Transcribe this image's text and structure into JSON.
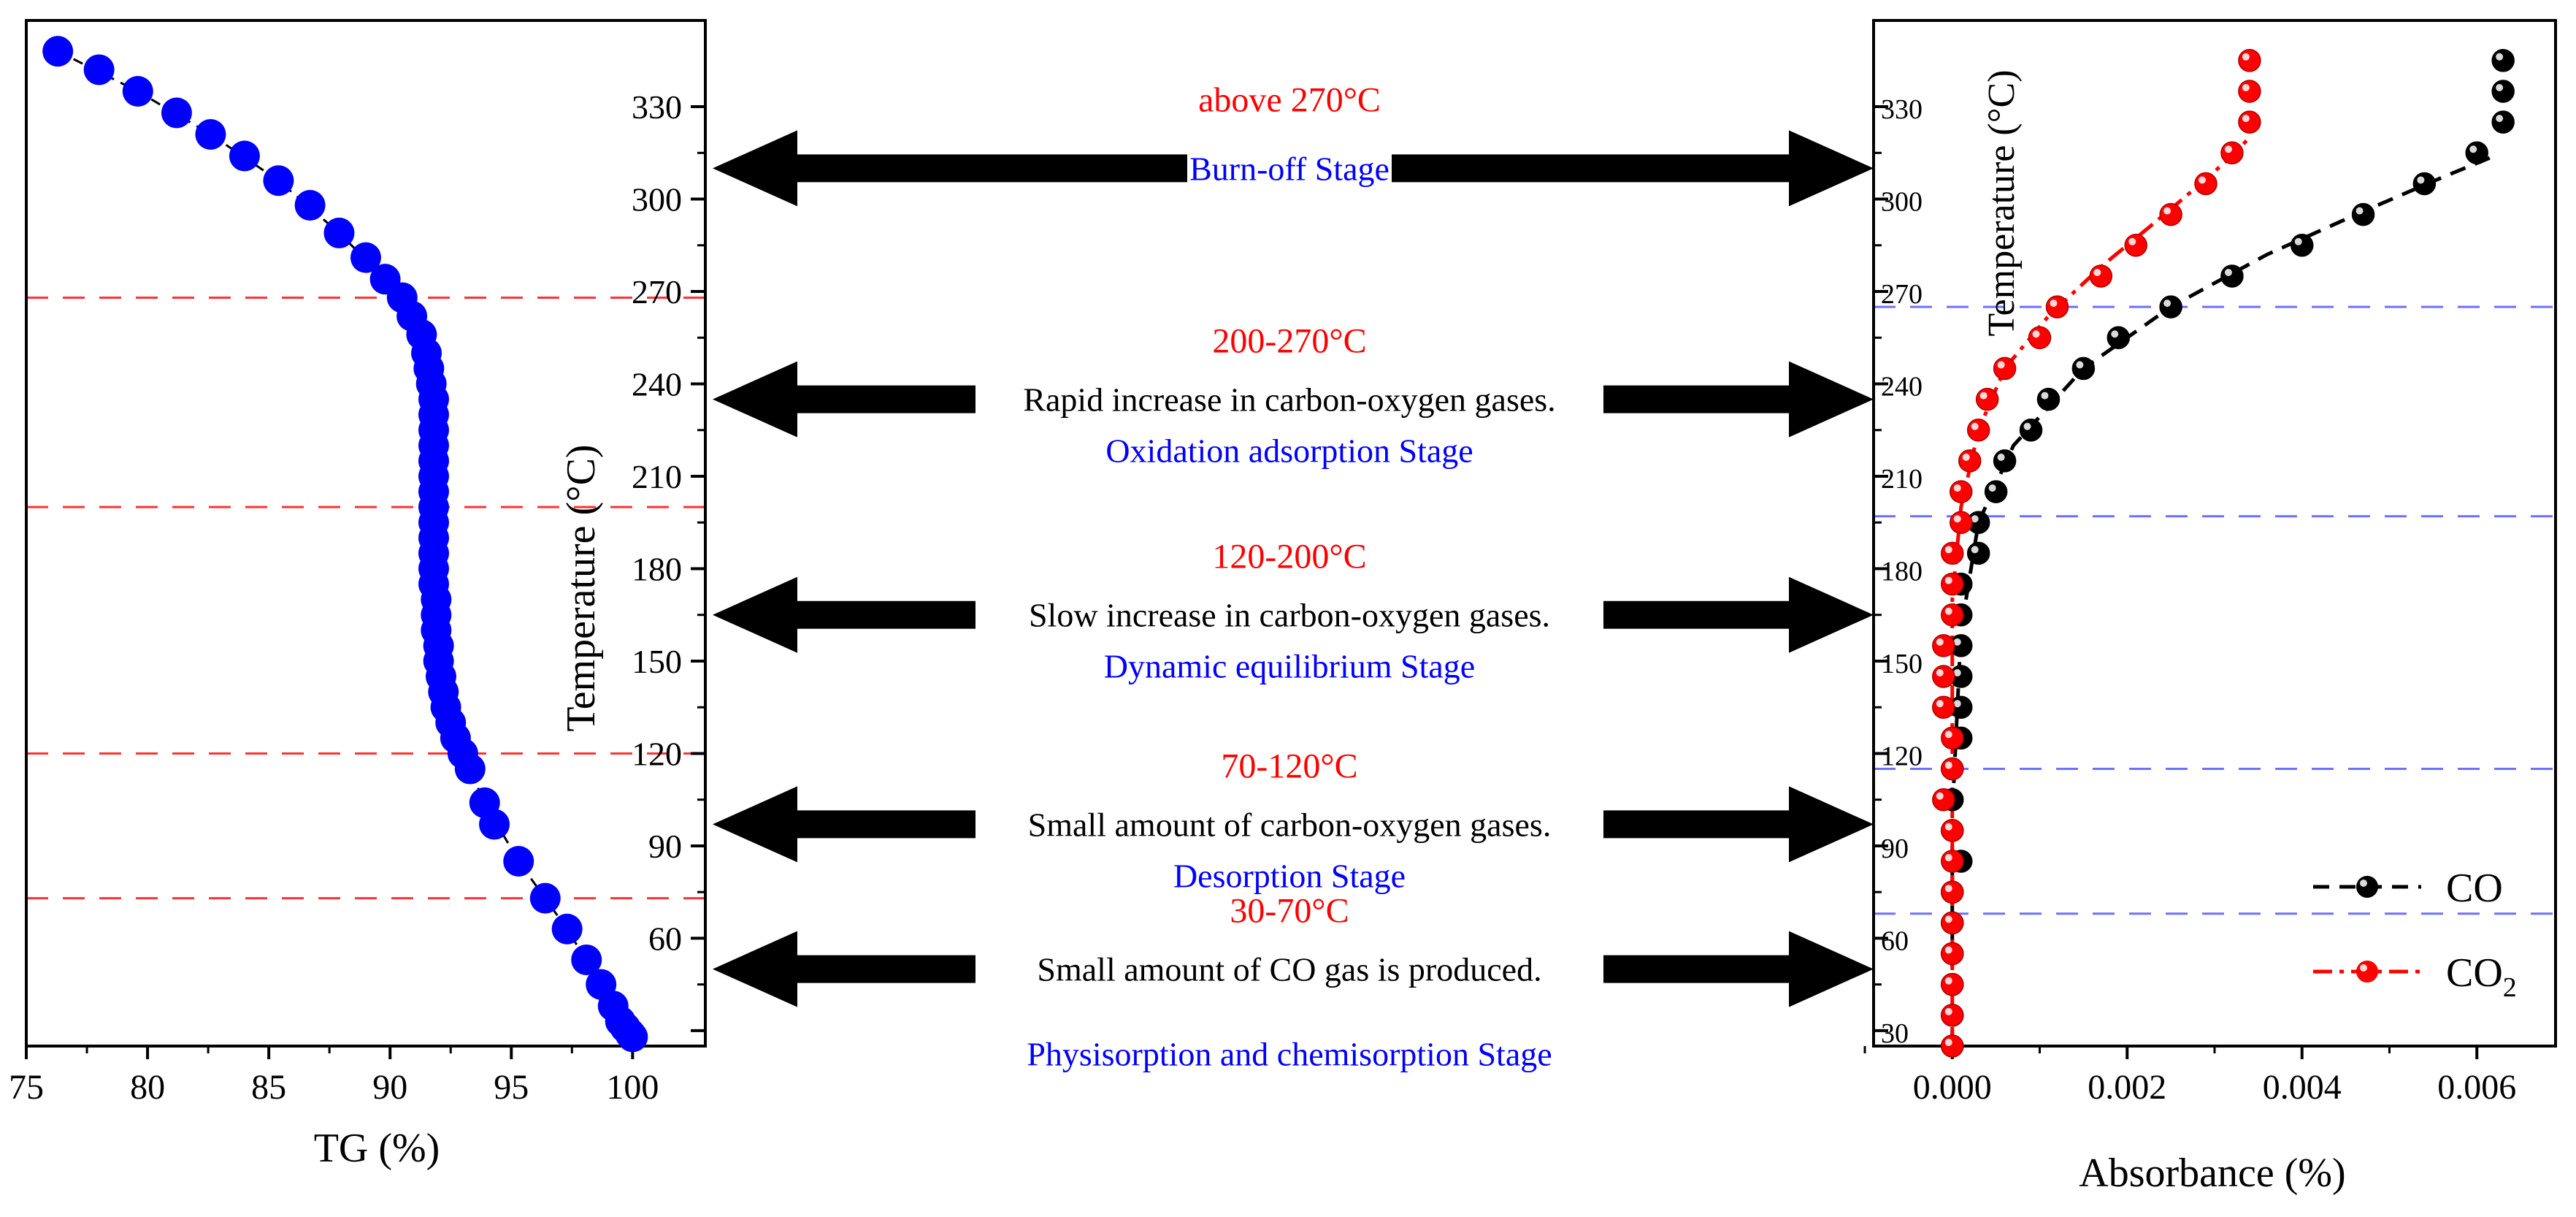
{
  "colors": {
    "tg_points": "#0000ff",
    "co_points": "#000000",
    "co2_points": "#ff0000",
    "stage_lines_left": "#ff3333",
    "stage_lines_right": "#6f6fff",
    "temp_text": "#ff0000",
    "stage_text": "#0000ff",
    "desc_text": "#000000",
    "arrow": "#000000"
  },
  "stages": [
    {
      "temp": "above 270°C",
      "description": "",
      "name": "Burn-off Stage",
      "arrow_temp": 310
    },
    {
      "temp": "200-270°C",
      "description": "Rapid increase in carbon-oxygen gases.",
      "name": "Oxidation adsorption Stage",
      "arrow_temp": 235
    },
    {
      "temp": "120-200°C",
      "description": "Slow increase in carbon-oxygen gases.",
      "name": "Dynamic equilibrium Stage",
      "arrow_temp": 165
    },
    {
      "temp": "70-120°C",
      "description": "Small amount of carbon-oxygen gases.",
      "name": "Desorption Stage",
      "arrow_temp": 97
    },
    {
      "temp": "30-70°C",
      "description": "Small amount of CO gas is produced.",
      "name": "Physisorption and chemisorption Stage",
      "arrow_temp": 50
    }
  ],
  "chart_data": [
    {
      "type": "scatter",
      "xlabel": "TG (%)",
      "ylabel": "Temperature (°C)",
      "xlim": [
        75,
        103
      ],
      "ylim": [
        25,
        358
      ],
      "xticks": [
        75,
        80,
        85,
        90,
        95,
        100
      ],
      "yticks": [
        30,
        60,
        90,
        120,
        150,
        180,
        210,
        240,
        270,
        300,
        330
      ],
      "ytick_labels": [
        "",
        "60",
        "90",
        "120",
        "150",
        "180",
        "210",
        "240",
        "270",
        "300",
        "330"
      ],
      "stage_boundaries": [
        268,
        200,
        120,
        73
      ],
      "series": [
        {
          "name": "",
          "color": "#0000ff",
          "points": [
            [
              76.3,
              348
            ],
            [
              78.0,
              342
            ],
            [
              79.6,
              335
            ],
            [
              81.2,
              328
            ],
            [
              82.6,
              321
            ],
            [
              84.0,
              314
            ],
            [
              85.4,
              306
            ],
            [
              86.7,
              298
            ],
            [
              87.9,
              289
            ],
            [
              89.0,
              281
            ],
            [
              89.8,
              274
            ],
            [
              90.5,
              268
            ],
            [
              90.9,
              262
            ],
            [
              91.3,
              256
            ],
            [
              91.5,
              250
            ],
            [
              91.6,
              245
            ],
            [
              91.7,
              240
            ],
            [
              91.8,
              235
            ],
            [
              91.8,
              230
            ],
            [
              91.8,
              225
            ],
            [
              91.8,
              220
            ],
            [
              91.8,
              215
            ],
            [
              91.8,
              210
            ],
            [
              91.8,
              205
            ],
            [
              91.8,
              200
            ],
            [
              91.8,
              195
            ],
            [
              91.8,
              190
            ],
            [
              91.8,
              185
            ],
            [
              91.8,
              180
            ],
            [
              91.8,
              175
            ],
            [
              91.9,
              170
            ],
            [
              91.9,
              165
            ],
            [
              91.9,
              160
            ],
            [
              92.0,
              155
            ],
            [
              92.0,
              150
            ],
            [
              92.1,
              145
            ],
            [
              92.2,
              140
            ],
            [
              92.3,
              135
            ],
            [
              92.5,
              130
            ],
            [
              92.7,
              125
            ],
            [
              93.0,
              120
            ],
            [
              93.3,
              115
            ],
            [
              93.9,
              104
            ],
            [
              94.3,
              97
            ],
            [
              95.3,
              85
            ],
            [
              96.4,
              73
            ],
            [
              97.3,
              63
            ],
            [
              98.1,
              53
            ],
            [
              98.7,
              45
            ],
            [
              99.2,
              38
            ],
            [
              99.5,
              33
            ],
            [
              99.7,
              31
            ],
            [
              99.9,
              29
            ],
            [
              100.0,
              28
            ]
          ],
          "fit": [
            [
              76.3,
              348
            ],
            [
              79.6,
              335
            ],
            [
              82.6,
              321
            ],
            [
              85.4,
              306
            ],
            [
              87.9,
              289
            ],
            [
              89.8,
              274
            ],
            [
              90.9,
              262
            ],
            [
              91.5,
              250
            ],
            [
              91.8,
              235
            ],
            [
              91.8,
              200
            ],
            [
              91.9,
              165
            ],
            [
              92.1,
              145
            ],
            [
              92.7,
              125
            ],
            [
              93.9,
              104
            ],
            [
              95.3,
              85
            ],
            [
              97.3,
              63
            ],
            [
              98.7,
              45
            ],
            [
              99.7,
              31
            ],
            [
              100.0,
              28
            ]
          ]
        }
      ]
    },
    {
      "type": "scatter",
      "xlabel": "Absorbance (%)",
      "ylabel": "Temperature (°C)",
      "xlim": [
        -0.0009,
        0.0069
      ],
      "ylim": [
        25,
        358
      ],
      "xticks": [
        0.0,
        0.002,
        0.004,
        0.006
      ],
      "xtick_labels": [
        "0.000",
        "0.002",
        "0.004",
        "0.006"
      ],
      "yticks": [
        30,
        60,
        90,
        120,
        150,
        180,
        210,
        240,
        270,
        300,
        330
      ],
      "ytick_labels": [
        "30",
        "60",
        "90",
        "120",
        "150",
        "180",
        "210",
        "240",
        "270",
        "300",
        "330"
      ],
      "stage_boundaries": [
        265,
        197,
        115,
        68
      ],
      "legend_position": "bottom-right",
      "series": [
        {
          "name": "CO",
          "color": "#000000",
          "points": [
            [
              0.0,
              25
            ],
            [
              0.0,
              35
            ],
            [
              0.0,
              45
            ],
            [
              0.0,
              55
            ],
            [
              0.0,
              65
            ],
            [
              0.0,
              75
            ],
            [
              0.0001,
              85
            ],
            [
              0.0,
              95
            ],
            [
              0.0,
              105
            ],
            [
              0.0,
              115
            ],
            [
              0.0001,
              125
            ],
            [
              0.0001,
              135
            ],
            [
              0.0001,
              145
            ],
            [
              0.0001,
              155
            ],
            [
              0.0001,
              165
            ],
            [
              0.0001,
              175
            ],
            [
              0.0003,
              185
            ],
            [
              0.0003,
              195
            ],
            [
              0.0005,
              205
            ],
            [
              0.0006,
              215
            ],
            [
              0.0009,
              225
            ],
            [
              0.0011,
              235
            ],
            [
              0.0015,
              245
            ],
            [
              0.0019,
              255
            ],
            [
              0.0025,
              265
            ],
            [
              0.0032,
              275
            ],
            [
              0.004,
              285
            ],
            [
              0.0047,
              295
            ],
            [
              0.0054,
              305
            ],
            [
              0.006,
              315
            ],
            [
              0.0063,
              325
            ],
            [
              0.0063,
              335
            ],
            [
              0.0063,
              345
            ]
          ],
          "fit": [
            [
              0.0,
              25
            ],
            [
              0.0,
              100
            ],
            [
              0.0001,
              160
            ],
            [
              0.0003,
              195
            ],
            [
              0.0007,
              220
            ],
            [
              0.0015,
              245
            ],
            [
              0.0025,
              265
            ],
            [
              0.0036,
              282
            ],
            [
              0.0047,
              296
            ],
            [
              0.0056,
              307
            ],
            [
              0.0062,
              314
            ]
          ]
        },
        {
          "name": "CO2",
          "label_main": "CO",
          "label_sub": "2",
          "color": "#ff0000",
          "points": [
            [
              0.0,
              25
            ],
            [
              0.0,
              35
            ],
            [
              0.0,
              45
            ],
            [
              0.0,
              55
            ],
            [
              0.0,
              65
            ],
            [
              0.0,
              75
            ],
            [
              0.0,
              85
            ],
            [
              0.0,
              95
            ],
            [
              -0.0001,
              105
            ],
            [
              0.0,
              115
            ],
            [
              0.0,
              125
            ],
            [
              -0.0001,
              135
            ],
            [
              -0.0001,
              145
            ],
            [
              -0.0001,
              155
            ],
            [
              0.0,
              165
            ],
            [
              0.0,
              175
            ],
            [
              0.0,
              185
            ],
            [
              0.0001,
              195
            ],
            [
              0.0001,
              205
            ],
            [
              0.0002,
              215
            ],
            [
              0.0003,
              225
            ],
            [
              0.0004,
              235
            ],
            [
              0.0006,
              245
            ],
            [
              0.001,
              255
            ],
            [
              0.0012,
              265
            ],
            [
              0.0017,
              275
            ],
            [
              0.0021,
              285
            ],
            [
              0.0025,
              295
            ],
            [
              0.0029,
              305
            ],
            [
              0.0032,
              315
            ],
            [
              0.0034,
              325
            ],
            [
              0.0034,
              335
            ],
            [
              0.0034,
              345
            ]
          ],
          "fit": [
            [
              0.0,
              25
            ],
            [
              0.0,
              170
            ],
            [
              0.0001,
              200
            ],
            [
              0.0003,
              225
            ],
            [
              0.0006,
              245
            ],
            [
              0.0011,
              262
            ],
            [
              0.0017,
              278
            ],
            [
              0.0023,
              292
            ],
            [
              0.0028,
              304
            ],
            [
              0.0032,
              314
            ],
            [
              0.0034,
              320
            ]
          ]
        }
      ]
    }
  ]
}
